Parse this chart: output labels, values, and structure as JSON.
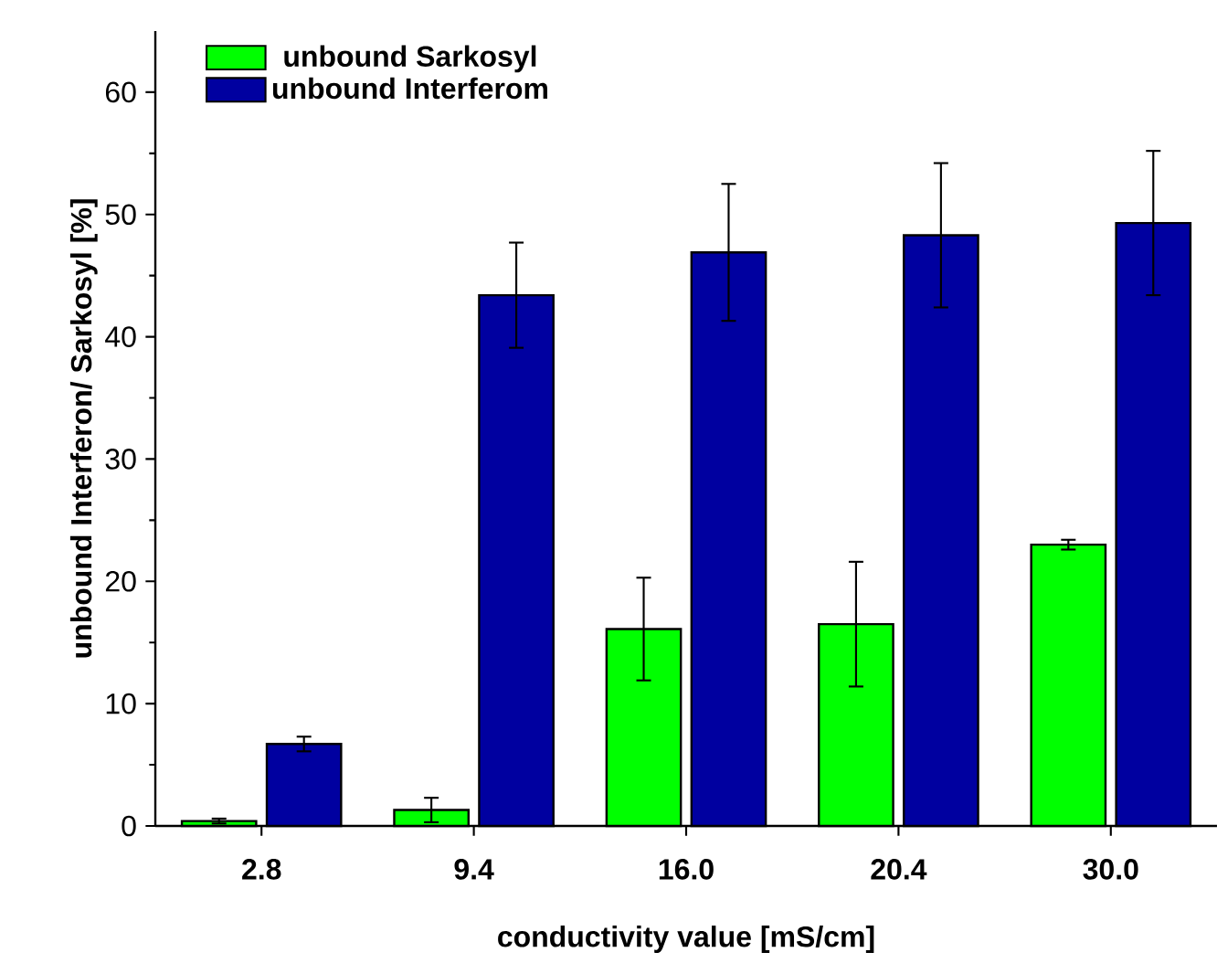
{
  "chart_data": {
    "type": "bar",
    "xlabel": "conductivity value [mS/cm]",
    "ylabel": "unbound Interferon/ Sarkosyl [%]",
    "categories": [
      "2.8",
      "9.4",
      "16.0",
      "20.4",
      "30.0"
    ],
    "series": [
      {
        "name": "unbound Sarkosyl",
        "color": "#00ff00",
        "values": [
          0.4,
          1.3,
          16.1,
          16.5,
          23.0
        ],
        "errors": [
          0.2,
          1.0,
          4.2,
          5.1,
          0.4
        ]
      },
      {
        "name": "unbound Interferom",
        "color": "#0000a0",
        "values": [
          6.7,
          43.4,
          46.9,
          48.3,
          49.3
        ],
        "errors": [
          0.6,
          4.3,
          5.6,
          5.9,
          5.9
        ]
      }
    ],
    "ylim": [
      0,
      65
    ],
    "yticks": [
      0,
      10,
      20,
      30,
      40,
      50,
      60
    ],
    "grid": false,
    "legend": "top left"
  }
}
